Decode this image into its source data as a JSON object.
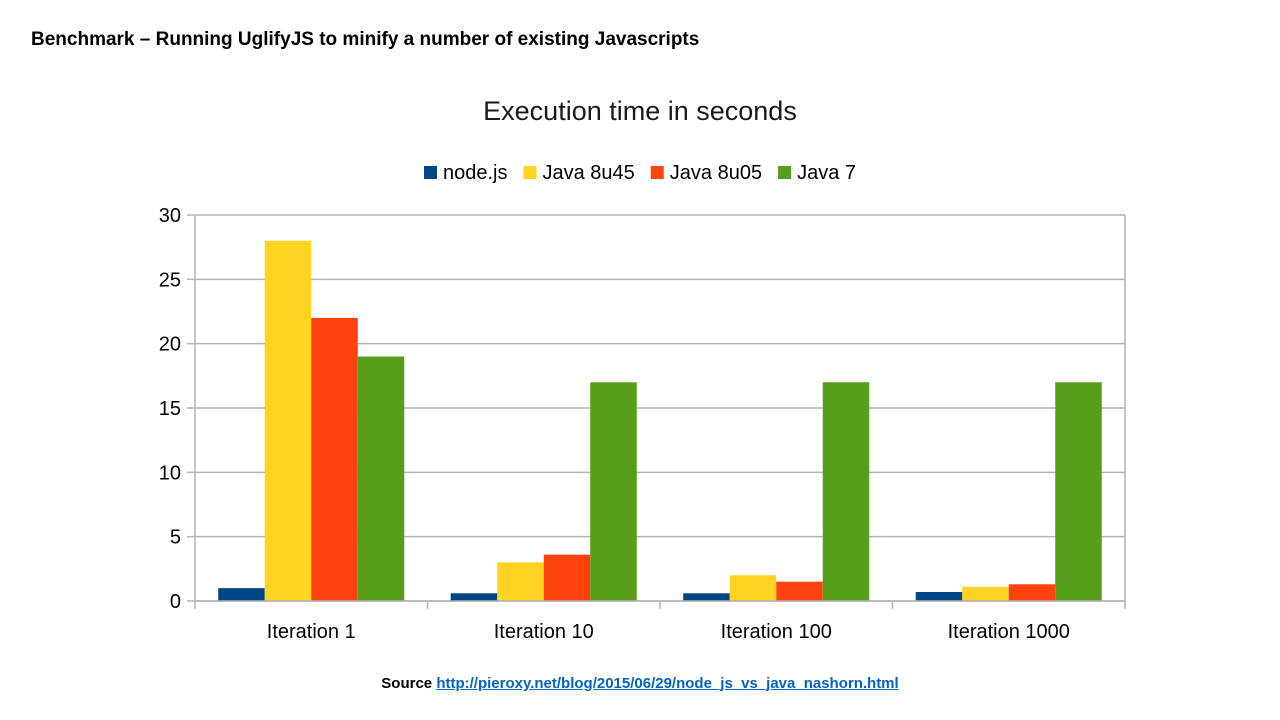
{
  "slide": {
    "title": "Benchmark – Running UglifyJS to minify a number of existing Javascripts"
  },
  "source": {
    "label": "Source",
    "url": "http://pieroxy.net/blog/2015/06/29/node_js_vs_java_nashorn.html"
  },
  "chart_data": {
    "type": "bar",
    "title": "Execution time in seconds",
    "xlabel": "",
    "ylabel": "",
    "categories": [
      "Iteration 1",
      "Iteration 10",
      "Iteration 100",
      "Iteration 1000"
    ],
    "series": [
      {
        "name": "node.js",
        "color": "#004586",
        "values": [
          1.0,
          0.6,
          0.6,
          0.7
        ]
      },
      {
        "name": "Java 8u45",
        "color": "#ffd320",
        "values": [
          28,
          3.0,
          2.0,
          1.1
        ]
      },
      {
        "name": "Java 8u05",
        "color": "#ff420e",
        "values": [
          22,
          3.6,
          1.5,
          1.3
        ]
      },
      {
        "name": "Java 7",
        "color": "#579d1c",
        "values": [
          19,
          17,
          17,
          17
        ]
      }
    ],
    "ylim": [
      0,
      30
    ],
    "yticks": [
      0,
      5,
      10,
      15,
      20,
      25,
      30
    ],
    "grid": true,
    "legend": "top"
  }
}
